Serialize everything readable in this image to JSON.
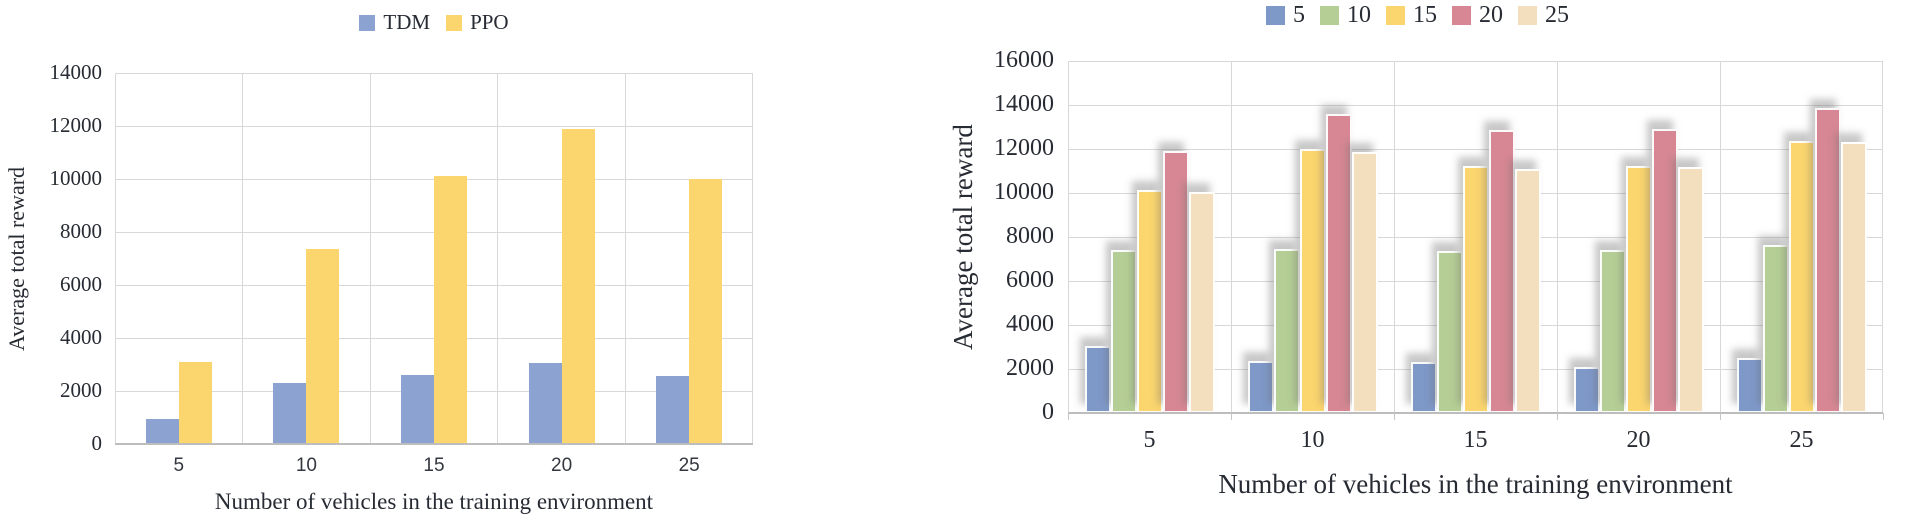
{
  "chart_data": [
    {
      "id": "left-chart",
      "type": "bar",
      "title": "",
      "categories": [
        "5",
        "10",
        "15",
        "20",
        "25"
      ],
      "series": [
        {
          "name": "TDM",
          "color": "#8CA3D2",
          "values": [
            950,
            2300,
            2600,
            3050,
            2550
          ]
        },
        {
          "name": "PPO",
          "color": "#FBD56E",
          "values": [
            3100,
            7350,
            10100,
            11900,
            10000
          ]
        }
      ],
      "xlabel": "Number of vehicles in the training environment",
      "ylabel": "Average total reward",
      "ylim": [
        0,
        14000
      ],
      "yticks": [
        "0",
        "2000",
        "4000",
        "6000",
        "8000",
        "10000",
        "12000",
        "14000"
      ],
      "grid": true,
      "legend_position": "top"
    },
    {
      "id": "right-chart",
      "type": "bar",
      "title": "",
      "categories": [
        "5",
        "10",
        "15",
        "20",
        "25"
      ],
      "series": [
        {
          "name": "5",
          "color": "#7E98C8",
          "values": [
            3050,
            2350,
            2300,
            2100,
            2500
          ]
        },
        {
          "name": "10",
          "color": "#B5CE95",
          "values": [
            7400,
            7450,
            7350,
            7400,
            7650
          ]
        },
        {
          "name": "15",
          "color": "#FBD56E",
          "values": [
            10150,
            12000,
            11250,
            11250,
            12350
          ]
        },
        {
          "name": "20",
          "color": "#D68793",
          "values": [
            11900,
            13600,
            12850,
            12900,
            13850
          ]
        },
        {
          "name": "25",
          "color": "#F3DEBD",
          "values": [
            10050,
            11850,
            11100,
            11200,
            12300
          ]
        }
      ],
      "xlabel": "Number of vehicles in the training environment",
      "ylabel": "Average total reward",
      "ylim": [
        0,
        16000
      ],
      "yticks": [
        "0",
        "2000",
        "4000",
        "6000",
        "8000",
        "10000",
        "12000",
        "14000",
        "16000"
      ],
      "grid": true,
      "legend_position": "top"
    }
  ],
  "colors": {
    "gridline": "#d8d8d8",
    "axis_line": "#bdbdbd",
    "text": "#272b33"
  }
}
